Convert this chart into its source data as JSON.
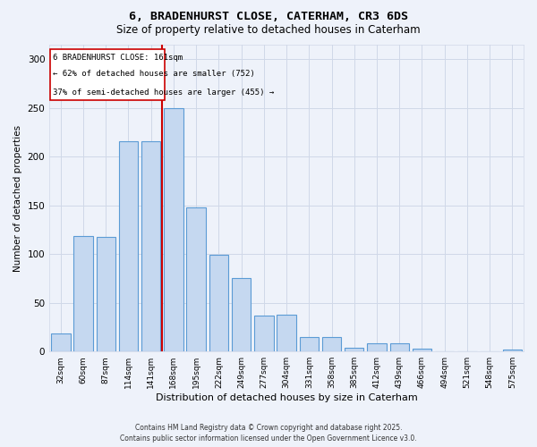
{
  "title_line1": "6, BRADENHURST CLOSE, CATERHAM, CR3 6DS",
  "title_line2": "Size of property relative to detached houses in Caterham",
  "xlabel": "Distribution of detached houses by size in Caterham",
  "ylabel": "Number of detached properties",
  "categories": [
    "32sqm",
    "60sqm",
    "87sqm",
    "114sqm",
    "141sqm",
    "168sqm",
    "195sqm",
    "222sqm",
    "249sqm",
    "277sqm",
    "304sqm",
    "331sqm",
    "358sqm",
    "385sqm",
    "412sqm",
    "439sqm",
    "466sqm",
    "494sqm",
    "521sqm",
    "548sqm",
    "575sqm"
  ],
  "values": [
    19,
    119,
    118,
    216,
    216,
    250,
    148,
    99,
    75,
    37,
    38,
    15,
    15,
    4,
    8,
    8,
    3,
    0,
    0,
    0,
    2
  ],
  "bar_color": "#c5d8f0",
  "bar_edge_color": "#5b9bd5",
  "bar_edge_width": 0.8,
  "red_line_x": 4.5,
  "red_line_color": "#cc0000",
  "annotation_text_line1": "6 BRADENHURST CLOSE: 161sqm",
  "annotation_text_line2": "← 62% of detached houses are smaller (752)",
  "annotation_text_line3": "37% of semi-detached houses are larger (455) →",
  "annotation_rect_color": "#cc0000",
  "annotation_bg_color": "#ffffff",
  "ylim": [
    0,
    315
  ],
  "yticks": [
    0,
    50,
    100,
    150,
    200,
    250,
    300
  ],
  "grid_color": "#d0d8e8",
  "bg_color": "#eef2fa",
  "footer_line1": "Contains HM Land Registry data © Crown copyright and database right 2025.",
  "footer_line2": "Contains public sector information licensed under the Open Government Licence v3.0."
}
